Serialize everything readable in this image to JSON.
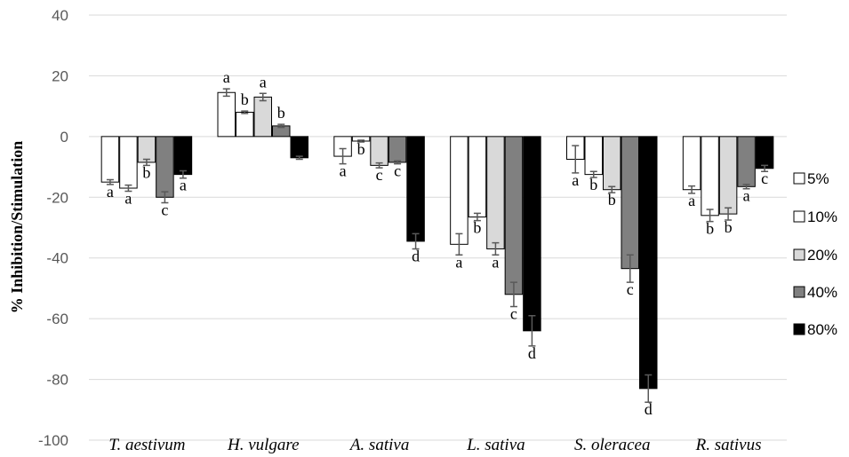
{
  "chart_data": {
    "type": "bar",
    "title": "",
    "xlabel": "",
    "ylabel": "% Inhibition/Stimulation",
    "ylim": [
      -100,
      40
    ],
    "yticks": [
      40,
      20,
      0,
      -20,
      -40,
      -60,
      -80,
      -100
    ],
    "grid": true,
    "legend_position": "right",
    "categories": [
      "T. aestivum",
      "H. vulgare",
      "A. sativa",
      "L. sativa",
      "S. oleracea",
      "R. sativus"
    ],
    "series": [
      {
        "name": "5%",
        "color": "#ffffff",
        "values": [
          -15,
          14.5,
          -6.5,
          -35.5,
          -7.5,
          -17.5
        ],
        "errors": [
          0.8,
          1.2,
          2.5,
          3.5,
          4.5,
          1.2
        ],
        "letters": [
          "a",
          "a",
          "a",
          "a",
          "a",
          "a"
        ]
      },
      {
        "name": "10%",
        "color": "#ffffff",
        "values": [
          -17,
          8,
          -1.5,
          -26.5,
          -12.5,
          -26
        ],
        "errors": [
          1.0,
          0.4,
          0.3,
          1.2,
          1.0,
          2.0
        ],
        "letters": [
          "a",
          "b",
          "b",
          "b",
          "b",
          "b"
        ]
      },
      {
        "name": "20%",
        "color": "#d9d9d9",
        "values": [
          -8.5,
          13,
          -9.5,
          -37,
          -17.5,
          -25.5
        ],
        "errors": [
          1.0,
          1.2,
          0.8,
          2.0,
          1.0,
          2.0
        ],
        "letters": [
          "b",
          "a",
          "c",
          "a",
          "b",
          "b"
        ]
      },
      {
        "name": "40%",
        "color": "#808080",
        "values": [
          -20,
          3.5,
          -8.5,
          -52,
          -43.5,
          -16.5
        ],
        "errors": [
          1.8,
          0.5,
          0.5,
          4.0,
          4.5,
          0.7
        ],
        "letters": [
          "c",
          "b",
          "c",
          "c",
          "c",
          "a"
        ]
      },
      {
        "name": "80%",
        "color": "#000000",
        "values": [
          -12.5,
          -7,
          -34.5,
          -64,
          -83,
          -10.5
        ],
        "errors": [
          1.2,
          0.5,
          2.5,
          5.0,
          4.5,
          1.0
        ],
        "letters": [
          "a",
          "",
          "d",
          "d",
          "d",
          "c"
        ]
      }
    ]
  }
}
